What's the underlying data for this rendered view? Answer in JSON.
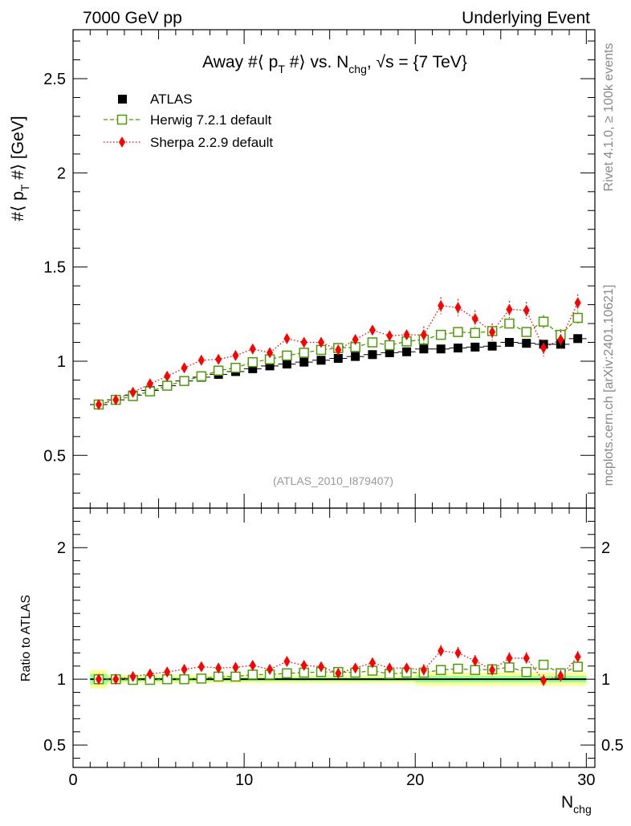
{
  "header": {
    "left": "7000 GeV pp",
    "right": "Underlying Event"
  },
  "side_labels": {
    "rivet": "Rivet 4.1.0, ≥ 100k events",
    "mcplots": "mcplots.cern.ch [arXiv:2401.10621]"
  },
  "colors": {
    "atlas": "#000000",
    "herwig": "#4e9a06",
    "sherpa": "#ff0000",
    "band_inner": "#99ff99",
    "band_outer": "#ffff99",
    "ref_text": "#999999"
  },
  "chart_data": [
    {
      "type": "scatter",
      "title": "Away #⟨ p_T #⟩ vs. N_chg, √s = {7 TeV}",
      "title_parts": {
        "a": "Away #⟨ p",
        "b": "T",
        "c": " #⟩ vs. N",
        "d": "chg",
        "e": ", √s = {7 TeV}"
      },
      "ylabel": "#⟨ p_T #⟩ [GeV]",
      "ylabel_parts": {
        "a": "#⟨ p",
        "b": "T",
        "c": " #⟩ [GeV]"
      },
      "xlabel": "N_chg",
      "xlim": [
        0,
        30.5
      ],
      "ylim": [
        0.22,
        2.76
      ],
      "y_ticks": [
        0.5,
        1,
        1.5,
        2,
        2.5
      ],
      "y_tick_labels": [
        "0.5",
        "1",
        "1.5",
        "2",
        "2.5"
      ],
      "reference_label": "(ATLAS_2010_I879407)",
      "legend_position": "top-left",
      "x": [
        1.5,
        2.5,
        3.5,
        4.5,
        5.5,
        6.5,
        7.5,
        8.5,
        9.5,
        10.5,
        11.5,
        12.5,
        13.5,
        14.5,
        15.5,
        16.5,
        17.5,
        18.5,
        19.5,
        20.5,
        21.5,
        22.5,
        23.5,
        24.5,
        25.5,
        26.5,
        27.5,
        28.5,
        29.5
      ],
      "series": [
        {
          "name": "ATLAS",
          "marker": "filled-square",
          "values": [
            0.77,
            0.795,
            0.82,
            0.845,
            0.87,
            0.895,
            0.915,
            0.93,
            0.945,
            0.96,
            0.975,
            0.985,
            0.995,
            1.005,
            1.015,
            1.025,
            1.035,
            1.045,
            1.05,
            1.065,
            1.065,
            1.07,
            1.075,
            1.08,
            1.1,
            1.095,
            1.09,
            1.09,
            1.12
          ]
        },
        {
          "name": "Herwig 7.2.1 default",
          "marker": "open-square",
          "line": "dashed",
          "values": [
            0.77,
            0.795,
            0.815,
            0.84,
            0.87,
            0.895,
            0.92,
            0.95,
            0.965,
            0.995,
            1.01,
            1.03,
            1.045,
            1.06,
            1.07,
            1.075,
            1.1,
            1.085,
            1.105,
            1.115,
            1.14,
            1.155,
            1.15,
            1.16,
            1.2,
            1.155,
            1.21,
            1.14,
            1.23
          ],
          "errors": [
            0,
            0,
            0,
            0,
            0,
            0,
            0,
            0,
            0,
            0,
            0,
            0,
            0,
            0,
            0,
            0,
            0,
            0,
            0.01,
            0.01,
            0.01,
            0.015,
            0.015,
            0.02,
            0.025,
            0.025,
            0.035,
            0.03,
            0.03
          ]
        },
        {
          "name": "Sherpa 2.2.9 default",
          "marker": "diamond",
          "line": "dotted",
          "values": [
            0.77,
            0.795,
            0.835,
            0.88,
            0.92,
            0.965,
            1.005,
            1.01,
            1.03,
            1.065,
            1.045,
            1.12,
            1.1,
            1.1,
            1.06,
            1.115,
            1.165,
            1.135,
            1.14,
            1.14,
            1.295,
            1.285,
            1.225,
            1.155,
            1.275,
            1.27,
            1.07,
            1.115,
            1.31
          ]
        }
      ]
    },
    {
      "type": "scatter",
      "title": "",
      "ylabel": "Ratio to ATLAS",
      "xlabel": "N_chg",
      "xlim": [
        0,
        30.5
      ],
      "ylim": [
        0.33,
        2.3
      ],
      "y_ticks": [
        0.5,
        1,
        2
      ],
      "y_tick_labels": [
        "0.5",
        "1",
        "2"
      ],
      "x_ticks": [
        0,
        10,
        20,
        30
      ],
      "x_tick_labels": [
        "0",
        "10",
        "20",
        "30"
      ],
      "x": [
        1.5,
        2.5,
        3.5,
        4.5,
        5.5,
        6.5,
        7.5,
        8.5,
        9.5,
        10.5,
        11.5,
        12.5,
        13.5,
        14.5,
        15.5,
        16.5,
        17.5,
        18.5,
        19.5,
        20.5,
        21.5,
        22.5,
        23.5,
        24.5,
        25.5,
        26.5,
        27.5,
        28.5,
        29.5
      ],
      "band_edges": [
        1,
        2,
        3,
        4,
        5,
        6,
        7,
        8,
        9,
        10,
        11,
        12,
        13,
        14,
        15,
        16,
        17,
        18,
        19,
        20,
        21,
        22,
        23,
        24,
        25,
        26,
        27,
        28,
        29,
        30
      ],
      "band_inner": [
        0.04,
        0.02,
        0.015,
        0.015,
        0.015,
        0.015,
        0.015,
        0.015,
        0.015,
        0.015,
        0.015,
        0.015,
        0.015,
        0.015,
        0.015,
        0.015,
        0.015,
        0.015,
        0.015,
        0.025,
        0.025,
        0.025,
        0.025,
        0.025,
        0.025,
        0.025,
        0.025,
        0.025,
        0.025
      ],
      "band_outer": [
        0.07,
        0.035,
        0.03,
        0.03,
        0.03,
        0.03,
        0.03,
        0.03,
        0.03,
        0.03,
        0.03,
        0.03,
        0.03,
        0.03,
        0.03,
        0.03,
        0.03,
        0.03,
        0.03,
        0.05,
        0.05,
        0.05,
        0.05,
        0.05,
        0.05,
        0.05,
        0.05,
        0.05,
        0.05
      ],
      "series": [
        {
          "name": "Herwig 7.2.1 default",
          "values": [
            1.0,
            1.0,
            0.995,
            0.995,
            1.0,
            1.0,
            1.005,
            1.02,
            1.02,
            1.035,
            1.035,
            1.045,
            1.05,
            1.055,
            1.055,
            1.05,
            1.065,
            1.04,
            1.05,
            1.05,
            1.07,
            1.08,
            1.07,
            1.075,
            1.09,
            1.055,
            1.11,
            1.045,
            1.095
          ],
          "errors": [
            0,
            0,
            0,
            0,
            0,
            0,
            0,
            0,
            0,
            0,
            0,
            0,
            0,
            0,
            0,
            0,
            0,
            0,
            0.01,
            0.01,
            0.01,
            0.015,
            0.015,
            0.02,
            0.025,
            0.025,
            0.03,
            0.03,
            0.03
          ]
        },
        {
          "name": "Sherpa 2.2.9 default",
          "values": [
            1.0,
            1.0,
            1.02,
            1.04,
            1.055,
            1.075,
            1.095,
            1.085,
            1.09,
            1.105,
            1.075,
            1.135,
            1.105,
            1.095,
            1.045,
            1.085,
            1.125,
            1.085,
            1.085,
            1.07,
            1.215,
            1.2,
            1.14,
            1.07,
            1.16,
            1.16,
            0.99,
            1.025,
            1.17
          ]
        }
      ]
    }
  ]
}
